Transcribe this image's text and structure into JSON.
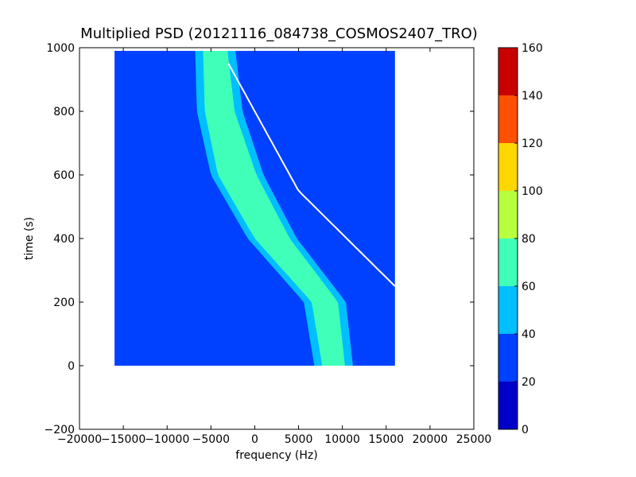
{
  "chart_data": {
    "type": "heatmap",
    "title": "Multiplied PSD (20121116_084738_COSMOS2407_TRO)",
    "xlabel": "frequency (Hz)",
    "ylabel": "time (s)",
    "xlim": [
      -20000,
      25000
    ],
    "ylim": [
      -200,
      1000
    ],
    "x_ticks": [
      -20000,
      -15000,
      -10000,
      -5000,
      0,
      5000,
      10000,
      15000,
      20000,
      25000
    ],
    "x_tick_labels": [
      "−20000",
      "−15000",
      "−10000",
      "−5000",
      "0",
      "5000",
      "10000",
      "15000",
      "20000",
      "25000"
    ],
    "y_ticks": [
      -200,
      0,
      200,
      400,
      600,
      800,
      1000
    ],
    "y_tick_labels": [
      "−200",
      "0",
      "200",
      "400",
      "600",
      "800",
      "1000"
    ],
    "data_extent": {
      "x": [
        -16000,
        16000
      ],
      "y": [
        0,
        990
      ]
    },
    "background_level": 25,
    "trace": {
      "time": [
        0,
        200,
        400,
        600,
        800,
        990
      ],
      "center_freq": [
        9000,
        8000,
        2000,
        -2000,
        -4000,
        -4500
      ],
      "core_halfwidth": [
        1300,
        1500,
        2000,
        2200,
        1700,
        1400
      ],
      "mid_halfwidth": [
        2200,
        2400,
        2800,
        3000,
        2600,
        2300
      ],
      "outer_halfwidth": [
        3100,
        3300,
        3800,
        4000,
        3500,
        3200
      ],
      "core_level": 68,
      "mid_level": 50,
      "outer_level": 35
    },
    "white_line": {
      "time": [
        250,
        550,
        950
      ],
      "freq": [
        16000,
        5000,
        -3000
      ]
    },
    "colorbar": {
      "bounds": [
        0,
        20,
        40,
        60,
        80,
        100,
        120,
        140,
        160
      ],
      "colors": [
        "#0000c8",
        "#0040ff",
        "#00bfff",
        "#40ffb8",
        "#b8ff40",
        "#ffd700",
        "#ff5000",
        "#c80000"
      ],
      "tick_labels": [
        "0",
        "20",
        "40",
        "60",
        "80",
        "100",
        "120",
        "140",
        "160"
      ]
    }
  }
}
